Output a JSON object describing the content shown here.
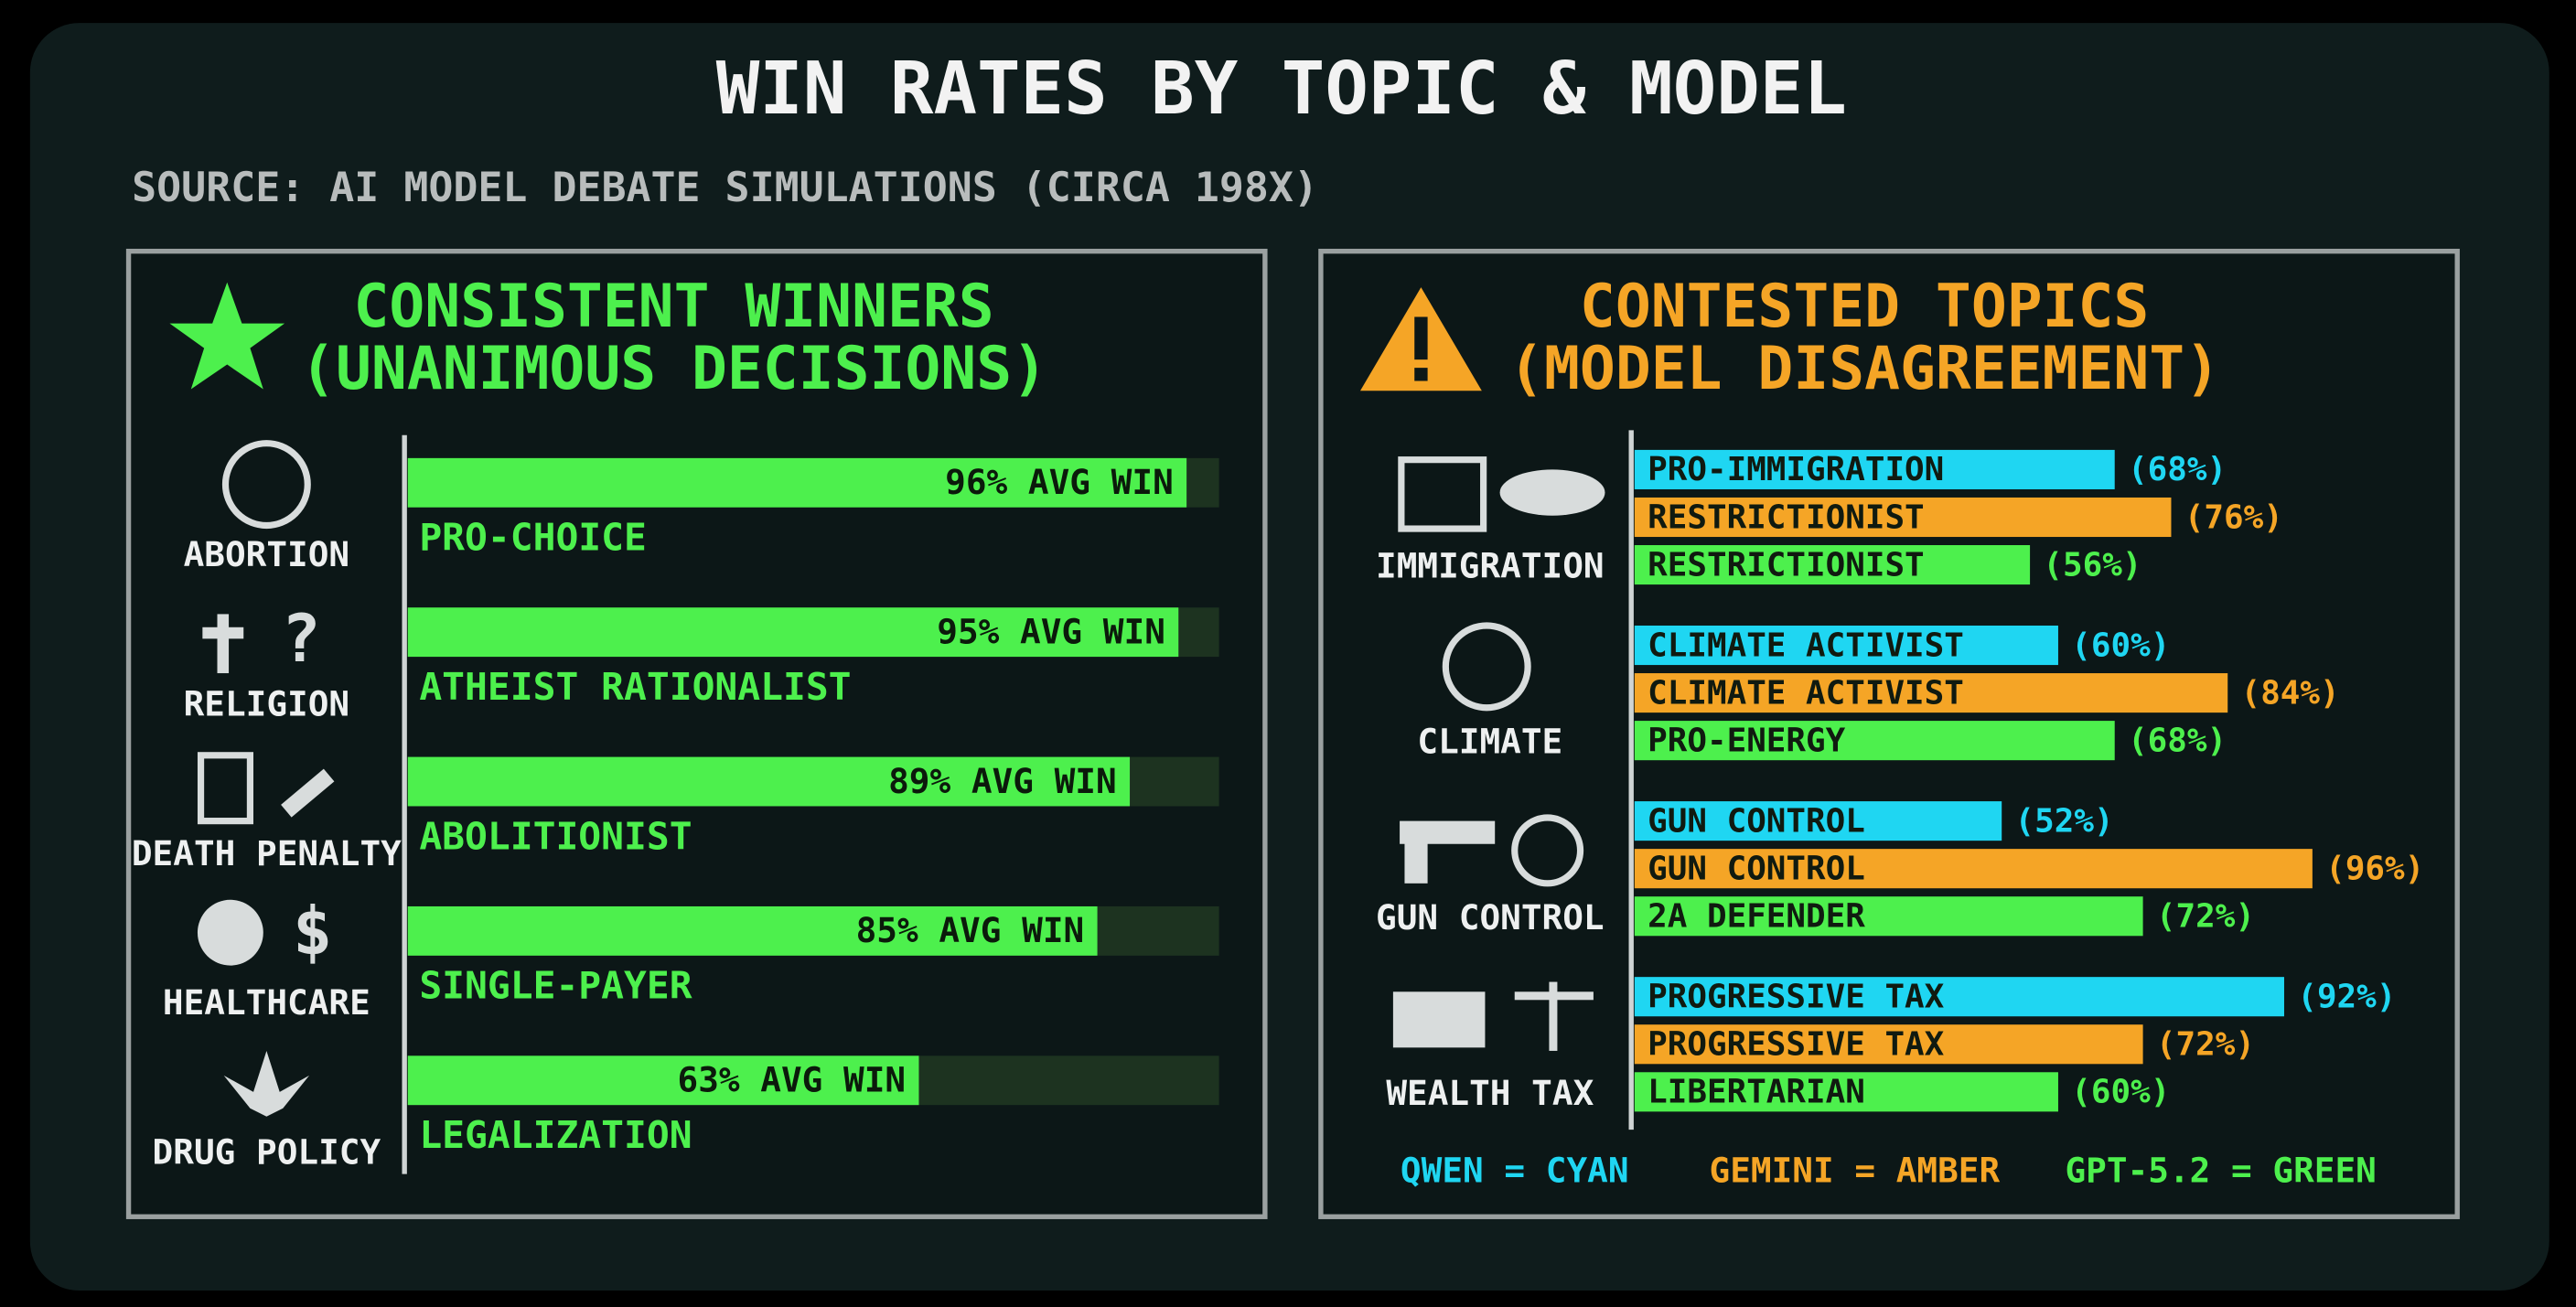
{
  "header": {
    "title": "WIN RATES BY TOPIC & MODEL",
    "subtitle": "SOURCE: AI MODEL DEBATE SIMULATIONS (CIRCA 198X)"
  },
  "chart_data": [
    {
      "type": "bar",
      "orientation": "horizontal",
      "title": "CONSISTENT WINNERS",
      "subtitle": "(UNANIMOUS DECISIONS)",
      "categories": [
        "ABORTION",
        "RELIGION",
        "DEATH PENALTY",
        "HEALTHCARE",
        "DRUG POLICY"
      ],
      "labels": [
        "PRO-CHOICE",
        "ATHEIST RATIONALIST",
        "ABOLITIONIST",
        "SINGLE-PAYER",
        "LEGALIZATION"
      ],
      "values": [
        96,
        95,
        89,
        85,
        63
      ],
      "value_labels": [
        "96% AVG WIN",
        "95% AVG WIN",
        "89% AVG WIN",
        "85% AVG WIN",
        "63% AVG WIN"
      ],
      "color": "#4df04d",
      "xlim": [
        0,
        100
      ]
    },
    {
      "type": "bar",
      "orientation": "horizontal",
      "title": "CONTESTED TOPICS",
      "subtitle": "(MODEL DISAGREEMENT)",
      "categories": [
        "IMMIGRATION",
        "CLIMATE",
        "GUN CONTROL",
        "WEALTH TAX"
      ],
      "series": [
        {
          "name": "QWEN = CYAN",
          "color": "#1fd6f2",
          "values": [
            68,
            60,
            52,
            92
          ],
          "labels": [
            "PRO-IMMIGRATION",
            "CLIMATE ACTIVIST",
            "GUN CONTROL",
            "PROGRESSIVE TAX"
          ],
          "value_labels": [
            "(68%)",
            "(60%)",
            "(52%)",
            "(92%)"
          ]
        },
        {
          "name": "GEMINI = AMBER",
          "color": "#f5a526",
          "values": [
            76,
            84,
            96,
            72
          ],
          "labels": [
            "RESTRICTIONIST",
            "CLIMATE ACTIVIST",
            "GUN CONTROL",
            "PROGRESSIVE TAX"
          ],
          "value_labels": [
            "(76%)",
            "(84%)",
            "(96%)",
            "(72%)"
          ]
        },
        {
          "name": "GPT-5.2 = GREEN",
          "color": "#4df04d",
          "values": [
            56,
            68,
            72,
            60
          ],
          "labels": [
            "RESTRICTIONIST",
            "PRO-ENERGY",
            "2A DEFENDER",
            "LIBERTARIAN"
          ],
          "value_labels": [
            "(56%)",
            "(68%)",
            "(72%)",
            "(60%)"
          ]
        }
      ],
      "xlim": [
        0,
        100
      ]
    }
  ]
}
